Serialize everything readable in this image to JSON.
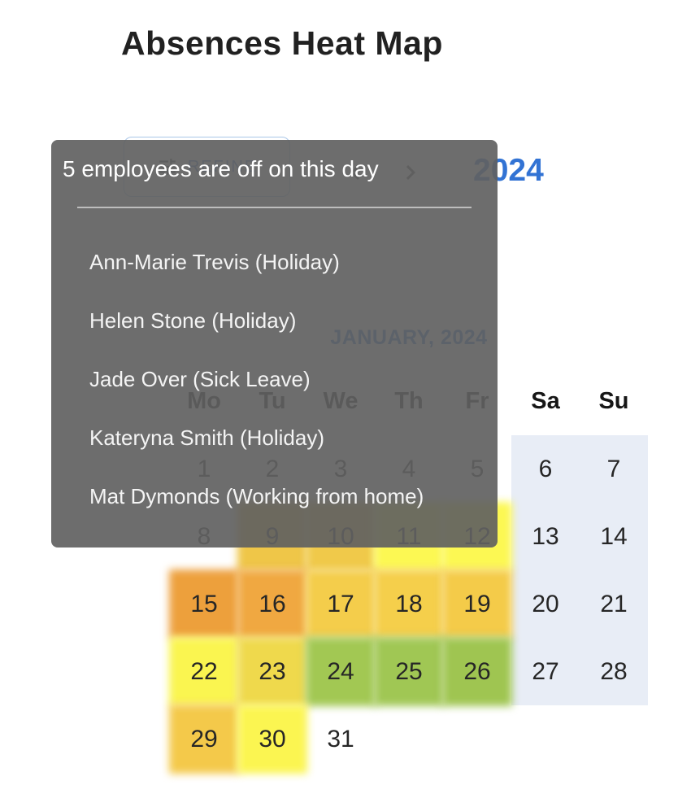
{
  "page": {
    "title": "Absences Heat Map"
  },
  "toolbar": {
    "refine_label": "REFINE",
    "year": "2024"
  },
  "calendar": {
    "month_title": "JANUARY, 2024",
    "day_headers": [
      "Mo",
      "Tu",
      "We",
      "Th",
      "Fr",
      "Sa",
      "Su"
    ],
    "weekend_color": "#E8EDF6",
    "days": [
      {
        "day": 1,
        "row": 0,
        "col": 0,
        "heat": null
      },
      {
        "day": 2,
        "row": 0,
        "col": 1,
        "heat": null
      },
      {
        "day": 3,
        "row": 0,
        "col": 2,
        "heat": null
      },
      {
        "day": 4,
        "row": 0,
        "col": 3,
        "heat": null
      },
      {
        "day": 5,
        "row": 0,
        "col": 4,
        "heat": null
      },
      {
        "day": 6,
        "row": 0,
        "col": 5,
        "heat": null
      },
      {
        "day": 7,
        "row": 0,
        "col": 6,
        "heat": null
      },
      {
        "day": 8,
        "row": 1,
        "col": 0,
        "heat": null
      },
      {
        "day": 9,
        "row": 1,
        "col": 1,
        "heat": "#EFC648"
      },
      {
        "day": 10,
        "row": 1,
        "col": 2,
        "heat": "#F0C94A"
      },
      {
        "day": 11,
        "row": 1,
        "col": 3,
        "heat": "#FCF853"
      },
      {
        "day": 12,
        "row": 1,
        "col": 4,
        "heat": "#FCF853"
      },
      {
        "day": 13,
        "row": 1,
        "col": 5,
        "heat": null
      },
      {
        "day": 14,
        "row": 1,
        "col": 6,
        "heat": null
      },
      {
        "day": 15,
        "row": 2,
        "col": 0,
        "heat": "#EDA03C"
      },
      {
        "day": 16,
        "row": 2,
        "col": 1,
        "heat": "#F0A841"
      },
      {
        "day": 17,
        "row": 2,
        "col": 2,
        "heat": "#F4CD4B"
      },
      {
        "day": 18,
        "row": 2,
        "col": 3,
        "heat": "#F5CF4B"
      },
      {
        "day": 19,
        "row": 2,
        "col": 4,
        "heat": "#F4CB49"
      },
      {
        "day": 20,
        "row": 2,
        "col": 5,
        "heat": null
      },
      {
        "day": 21,
        "row": 2,
        "col": 6,
        "heat": null
      },
      {
        "day": 22,
        "row": 3,
        "col": 0,
        "heat": "#FAF550"
      },
      {
        "day": 23,
        "row": 3,
        "col": 1,
        "heat": "#EFD94C"
      },
      {
        "day": 24,
        "row": 3,
        "col": 2,
        "heat": "#A2C853"
      },
      {
        "day": 25,
        "row": 3,
        "col": 3,
        "heat": "#A0C754"
      },
      {
        "day": 26,
        "row": 3,
        "col": 4,
        "heat": "#9FC551"
      },
      {
        "day": 27,
        "row": 3,
        "col": 5,
        "heat": null
      },
      {
        "day": 28,
        "row": 3,
        "col": 6,
        "heat": null
      },
      {
        "day": 29,
        "row": 4,
        "col": 0,
        "heat": "#F4C94A"
      },
      {
        "day": 30,
        "row": 4,
        "col": 1,
        "heat": "#FBF551"
      },
      {
        "day": 31,
        "row": 4,
        "col": 2,
        "heat": null
      }
    ]
  },
  "tooltip": {
    "title": "5 employees are off on this day",
    "items": [
      "Ann-Marie Trevis (Holiday)",
      "Helen Stone (Holiday)",
      "Jade Over (Sick Leave)",
      "Kateryna Smith (Holiday)",
      "Mat Dymonds (Working from home)"
    ]
  },
  "colors": {
    "accent_blue": "#3273D4",
    "tooltip_bg": "rgba(97,97,97,0.92)",
    "weekend_bg": "#E8EDF6"
  }
}
